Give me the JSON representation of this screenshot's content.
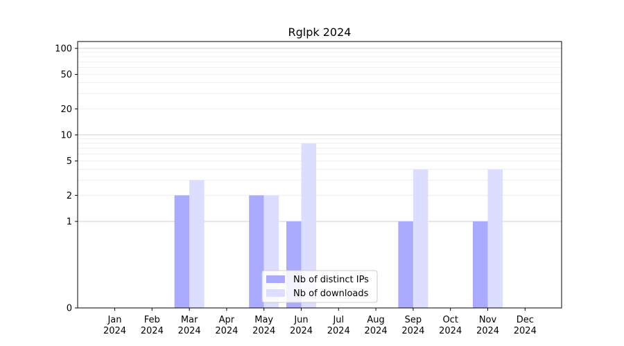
{
  "chart_data": {
    "type": "bar",
    "title": "Rglpk 2024",
    "xlabel": "",
    "ylabel": "",
    "yscale": "symlog",
    "ylim": [
      0,
      120
    ],
    "yticks": [
      0,
      1,
      2,
      5,
      10,
      20,
      50,
      100
    ],
    "categories": [
      [
        "Jan",
        "2024"
      ],
      [
        "Feb",
        "2024"
      ],
      [
        "Mar",
        "2024"
      ],
      [
        "Apr",
        "2024"
      ],
      [
        "May",
        "2024"
      ],
      [
        "Jun",
        "2024"
      ],
      [
        "Jul",
        "2024"
      ],
      [
        "Aug",
        "2024"
      ],
      [
        "Sep",
        "2024"
      ],
      [
        "Oct",
        "2024"
      ],
      [
        "Nov",
        "2024"
      ],
      [
        "Dec",
        "2024"
      ]
    ],
    "series": [
      {
        "name": "Nb of distinct IPs",
        "color": "#aaaaff",
        "values": [
          0,
          0,
          2,
          0,
          2,
          1,
          0,
          0,
          1,
          0,
          1,
          0
        ]
      },
      {
        "name": "Nb of downloads",
        "color": "#ddddff",
        "values": [
          0,
          0,
          3,
          0,
          2,
          8,
          0,
          0,
          4,
          0,
          4,
          0
        ]
      }
    ],
    "legend": "lower-center",
    "grid": true
  }
}
